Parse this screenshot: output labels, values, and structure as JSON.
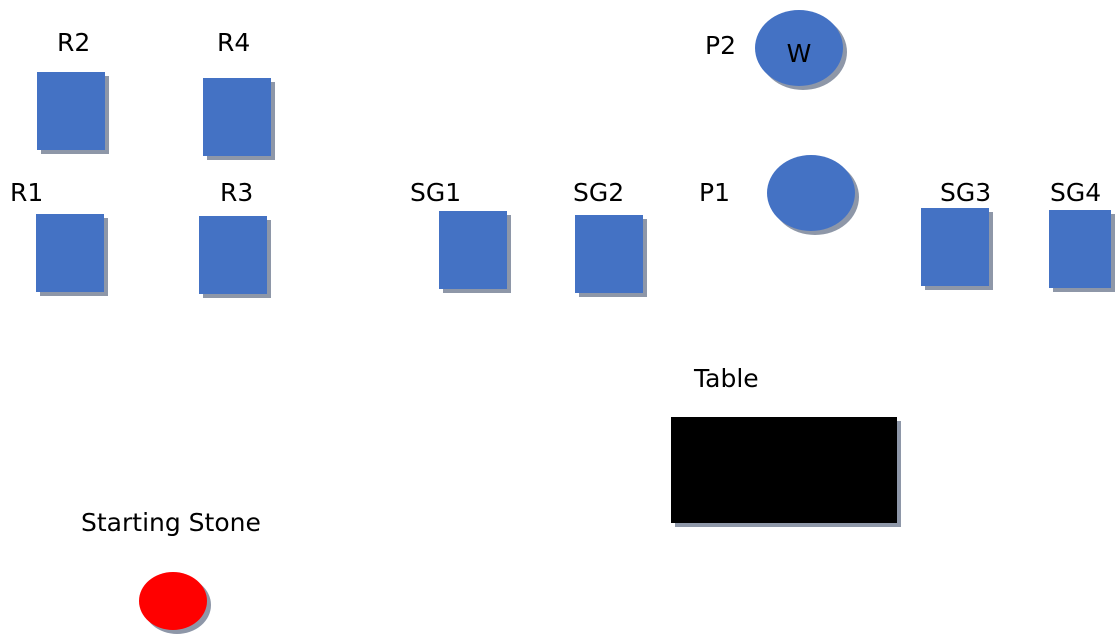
{
  "labels": {
    "R2": "R2",
    "R4": "R4",
    "R1": "R1",
    "R3": "R3",
    "SG1": "SG1",
    "SG2": "SG2",
    "P1": "P1",
    "P2": "P2",
    "SG3": "SG3",
    "SG4": "SG4",
    "table": "Table",
    "starting_stone": "Starting Stone",
    "W": "W"
  },
  "colors": {
    "item": "#4472c4",
    "shadow": "#8e97a8",
    "table": "#000000",
    "starting_stone": "#ff0000"
  }
}
